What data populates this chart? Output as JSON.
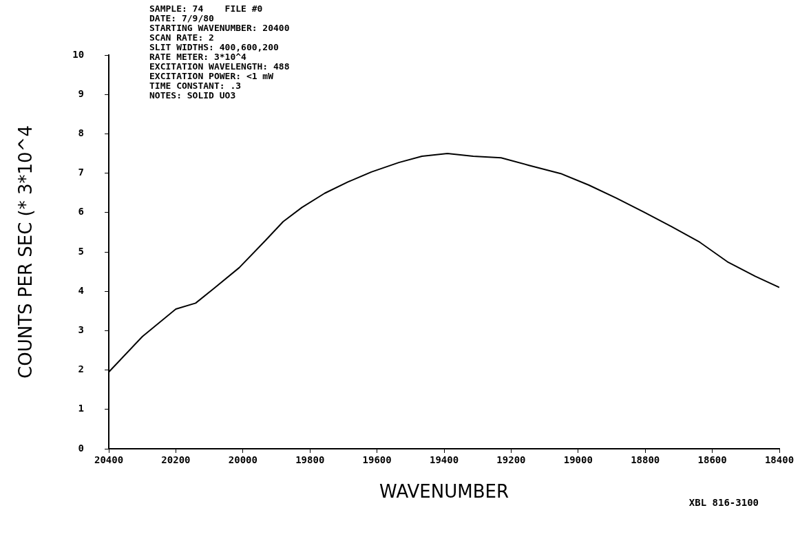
{
  "chart_data": {
    "type": "line",
    "xlabel": "WAVENUMBER",
    "ylabel": "COUNTS PER SEC (* 3*10^4",
    "annotations": [
      "SAMPLE: 74    FILE #0",
      "DATE: 7/9/80",
      "STARTING WAVENUMBER: 20400",
      "SCAN RATE: 2",
      "SLIT WIDTHS: 400,600,200",
      "RATE METER: 3*10^4",
      "EXCITATION WAVELENGTH: 488",
      "EXCITATION POWER: <1 mW",
      "TIME CONSTANT: .3",
      "NOTES: SOLID UO3",
      "XBL 816-3100"
    ],
    "series": [
      {
        "color": "#000000",
        "x": [
          20400,
          20300,
          20200,
          20141,
          20087,
          20011,
          19934,
          19880,
          19824,
          19756,
          19686,
          19617,
          19535,
          19466,
          19390,
          19313,
          19230,
          19147,
          19052,
          18969,
          18887,
          18804,
          18721,
          18638,
          18555,
          18472,
          18431,
          18400
        ],
        "values": [
          1.95,
          2.85,
          3.55,
          3.7,
          4.07,
          4.6,
          5.28,
          5.77,
          6.13,
          6.49,
          6.78,
          7.03,
          7.27,
          7.43,
          7.5,
          7.43,
          7.39,
          7.2,
          6.99,
          6.7,
          6.37,
          6.01,
          5.64,
          5.25,
          4.75,
          4.38,
          4.22,
          4.1
        ]
      }
    ],
    "xlim": [
      20400,
      18400
    ],
    "xticks": [
      20400,
      20200,
      20000,
      19800,
      19600,
      19400,
      19200,
      19000,
      18800,
      18600,
      18400
    ],
    "ylim": [
      0,
      10
    ],
    "yticks": [
      0,
      1,
      2,
      3,
      4,
      5,
      6,
      7,
      8,
      9,
      10
    ],
    "grid": false,
    "legend": false,
    "marker": "none",
    "line_style": "solid"
  }
}
